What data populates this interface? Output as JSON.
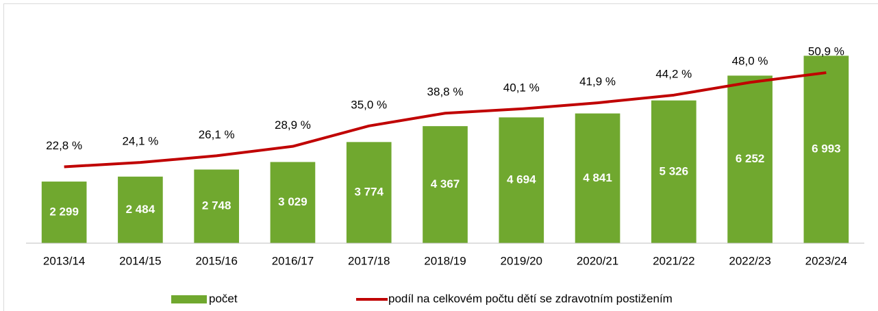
{
  "chart_data": {
    "type": "bar",
    "categories": [
      "2013/14",
      "2014/15",
      "2015/16",
      "2016/17",
      "2017/18",
      "2018/19",
      "2019/20",
      "2020/21",
      "2021/22",
      "2022/23",
      "2023/24"
    ],
    "series": [
      {
        "name": "počet",
        "type": "bar",
        "color": "#70a82f",
        "values": [
          2299,
          2484,
          2748,
          3029,
          3774,
          4367,
          4694,
          4841,
          5326,
          6252,
          6993
        ],
        "value_labels": [
          "2 299",
          "2 484",
          "2 748",
          "3 029",
          "3 774",
          "4 367",
          "4 694",
          "4 841",
          "5 326",
          "6 252",
          "6 993"
        ]
      },
      {
        "name": "podíl na celkovém počtu dětí se zdravotním postižením",
        "type": "line",
        "axis": "y2",
        "color": "#c00000",
        "values": [
          22.8,
          24.1,
          26.1,
          28.9,
          35.0,
          38.8,
          40.1,
          41.9,
          44.2,
          48.0,
          50.9
        ],
        "value_labels": [
          "22,8 %",
          "24,1 %",
          "26,1 %",
          "28,9 %",
          "35,0 %",
          "38,8 %",
          "40,1 %",
          "41,9 %",
          "44,2 %",
          "48,0 %",
          "50,9 %"
        ]
      }
    ],
    "ylim": [
      0,
      8000
    ],
    "y2lim": [
      0,
      64
    ],
    "legend": "bottom"
  }
}
